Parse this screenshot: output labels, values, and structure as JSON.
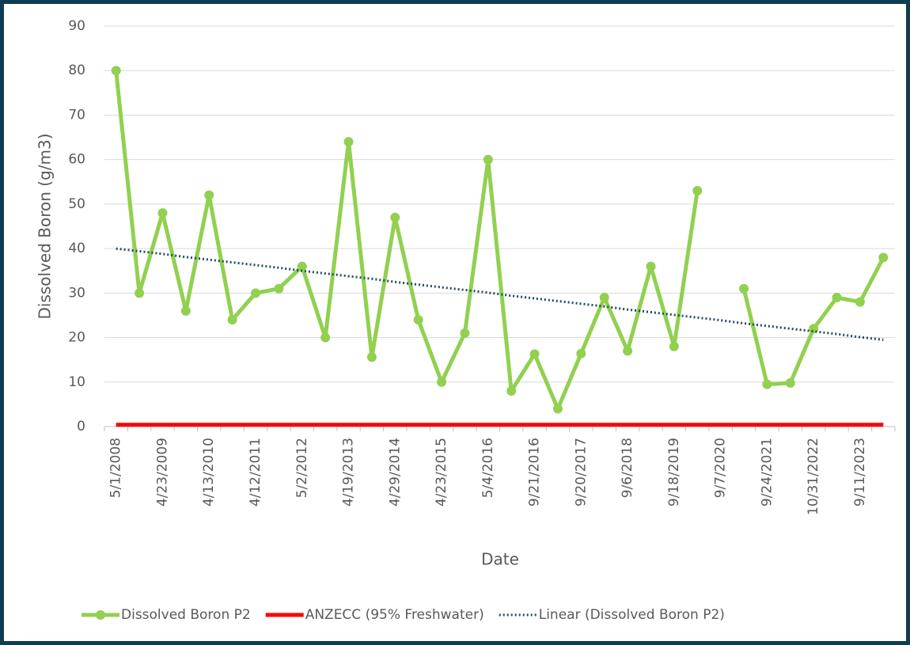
{
  "chart_data": {
    "type": "line",
    "x_label": "Date",
    "y_label": "Dissolved Boron (g/m3)",
    "categories": [
      "5/1/2008",
      null,
      "4/23/2009",
      null,
      "4/13/2010",
      null,
      "4/12/2011",
      null,
      "5/2/2012",
      null,
      "4/19/2013",
      null,
      "4/29/2014",
      null,
      "4/23/2015",
      null,
      "5/4/2016",
      null,
      "9/21/2016",
      null,
      "9/20/2017",
      null,
      "9/6/2018",
      null,
      "9/18/2019",
      null,
      "9/7/2020",
      null,
      "9/24/2021",
      null,
      "10/31/2022",
      null,
      "9/11/2023",
      null
    ],
    "series": [
      {
        "name": "Dissolved Boron P2",
        "color": "#92d050",
        "markers": true,
        "values": [
          80,
          30,
          48,
          26,
          52,
          24,
          30,
          31,
          36,
          20,
          64,
          15.6,
          47,
          24,
          10,
          21,
          60,
          8,
          16.3,
          4,
          16.4,
          29,
          17,
          36,
          18,
          53,
          null,
          31,
          9.5,
          9.8,
          22,
          29,
          28,
          38
        ]
      },
      {
        "name": "ANZECC (95% Freshwater)",
        "color": "#ff0000",
        "markers": false,
        "values": [
          0.4,
          0.4,
          0.4,
          0.4,
          0.4,
          0.4,
          0.4,
          0.4,
          0.4,
          0.4,
          0.4,
          0.4,
          0.4,
          0.4,
          0.4,
          0.4,
          0.4,
          0.4,
          0.4,
          0.4,
          0.4,
          0.4,
          0.4,
          0.4,
          0.4,
          0.4,
          0.4,
          0.4,
          0.4,
          0.4,
          0.4,
          0.4,
          0.4,
          0.4
        ]
      },
      {
        "name": "Linear (Dissolved Boron P2)",
        "color": "#1f4e5f",
        "markers": false,
        "dotted": true,
        "values": [
          40,
          39.4,
          38.8,
          38.1,
          37.5,
          36.9,
          36.3,
          35.7,
          35.0,
          34.4,
          33.8,
          33.2,
          32.5,
          31.9,
          31.3,
          30.7,
          30.1,
          29.4,
          28.8,
          28.2,
          27.6,
          27.0,
          26.3,
          25.7,
          25.1,
          24.5,
          23.9,
          23.2,
          22.6,
          22.0,
          21.4,
          20.8,
          20.1,
          19.5
        ]
      }
    ],
    "ylim": [
      0,
      90
    ],
    "yticks": [
      0,
      10,
      20,
      30,
      40,
      50,
      60,
      70,
      80,
      90
    ],
    "grid": true,
    "legend": "bottom"
  }
}
